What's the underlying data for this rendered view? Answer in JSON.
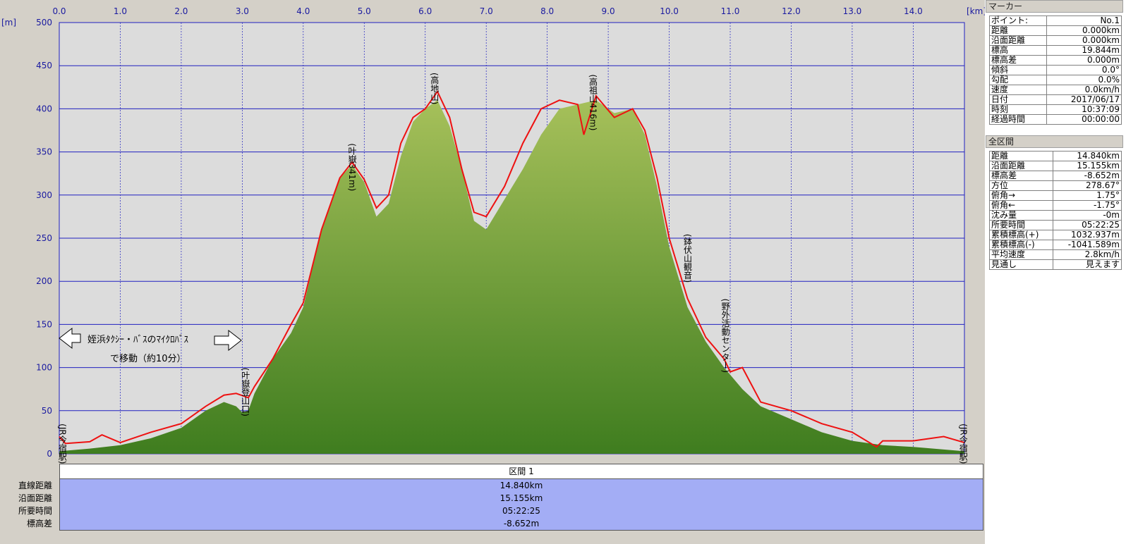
{
  "chart_data": {
    "type": "area",
    "x_unit_label": "[km]",
    "y_unit_label": "[m]",
    "xlim": [
      0,
      14.84
    ],
    "ylim": [
      0,
      500
    ],
    "x_ticks": [
      "0.0",
      "1.0",
      "2.0",
      "3.0",
      "4.0",
      "5.0",
      "6.0",
      "7.0",
      "8.0",
      "9.0",
      "10.0",
      "11.0",
      "12.0",
      "13.0",
      "14.0"
    ],
    "y_ticks": [
      "500",
      "450",
      "400",
      "350",
      "300",
      "250",
      "200",
      "150",
      "100",
      "50",
      "0"
    ],
    "grid": true,
    "series": [
      {
        "color": "#6b9a3a",
        "x": [
          0,
          0.5,
          1.0,
          1.5,
          2.0,
          2.4,
          2.7,
          2.9,
          3.0,
          3.1,
          3.2,
          3.5,
          3.8,
          4.0,
          4.3,
          4.6,
          4.8,
          5.0,
          5.2,
          5.4,
          5.6,
          5.8,
          6.0,
          6.2,
          6.4,
          6.6,
          6.8,
          7.0,
          7.3,
          7.6,
          7.9,
          8.2,
          8.5,
          8.8,
          9.1,
          9.4,
          9.6,
          9.8,
          10.0,
          10.3,
          10.6,
          10.9,
          11.2,
          11.5,
          12.0,
          12.5,
          13.0,
          13.5,
          14.0,
          14.5,
          14.84
        ],
        "y": [
          3,
          6,
          10,
          18,
          30,
          50,
          60,
          55,
          48,
          50,
          70,
          110,
          140,
          170,
          260,
          320,
          335,
          315,
          275,
          290,
          345,
          385,
          400,
          410,
          380,
          330,
          270,
          260,
          295,
          330,
          370,
          400,
          405,
          410,
          395,
          400,
          370,
          310,
          240,
          170,
          130,
          100,
          75,
          55,
          40,
          25,
          15,
          10,
          8,
          5,
          3
        ]
      },
      {
        "color": "#ee1111",
        "x": [
          0,
          0.1,
          0.5,
          0.7,
          1.0,
          1.5,
          2.0,
          2.4,
          2.7,
          2.9,
          3.1,
          3.2,
          3.5,
          3.8,
          4.0,
          4.3,
          4.6,
          4.8,
          5.0,
          5.2,
          5.4,
          5.6,
          5.8,
          6.0,
          6.2,
          6.4,
          6.6,
          6.8,
          7.0,
          7.3,
          7.6,
          7.9,
          8.2,
          8.5,
          8.6,
          8.8,
          9.1,
          9.4,
          9.6,
          9.8,
          10.0,
          10.3,
          10.6,
          10.9,
          11.0,
          11.2,
          11.5,
          12.0,
          12.5,
          13.0,
          13.4,
          13.5,
          14.0,
          14.5,
          14.84
        ],
        "y": [
          20,
          12,
          14,
          22,
          13,
          25,
          35,
          55,
          68,
          70,
          65,
          78,
          110,
          150,
          175,
          260,
          320,
          338,
          318,
          285,
          300,
          360,
          390,
          400,
          420,
          390,
          330,
          280,
          275,
          310,
          360,
          400,
          410,
          405,
          370,
          415,
          390,
          400,
          375,
          320,
          250,
          180,
          135,
          110,
          95,
          100,
          60,
          50,
          35,
          25,
          8,
          15,
          15,
          20,
          13
        ]
      }
    ],
    "annotations": [
      {
        "text": "(JR今宿駅)",
        "x": 0.05,
        "y": 35
      },
      {
        "text": "(叶嶽登山口)",
        "x": 3.05,
        "y": 100
      },
      {
        "text": "(叶嶽341m)",
        "x": 4.8,
        "y": 360
      },
      {
        "text": "(高地山)",
        "x": 6.15,
        "y": 442
      },
      {
        "text": "(高祖山416m)",
        "x": 8.75,
        "y": 440
      },
      {
        "text": "(鉢伏山観音)",
        "x": 10.3,
        "y": 255
      },
      {
        "text": "(野外活動センター)",
        "x": 10.92,
        "y": 180
      },
      {
        "text": "(JR今宿駅)",
        "x": 14.82,
        "y": 35
      }
    ],
    "note_text": [
      "姪浜ﾀｸｼｰ・ﾊﾞｽのﾏｲｸﾛﾊﾞｽ",
      "で移動（約10分）"
    ]
  },
  "stats": {
    "header": "区間 1",
    "rows": [
      {
        "label": "直線距離",
        "value": "14.840km"
      },
      {
        "label": "沿面距離",
        "value": "15.155km"
      },
      {
        "label": "所要時間",
        "value": "05:22:25"
      },
      {
        "label": "標高差",
        "value": "-8.652m"
      }
    ]
  },
  "side_panel": {
    "marker_title": "マーカー",
    "marker_rows": [
      {
        "k": "ポイント:",
        "v": "No.1"
      },
      {
        "k": "距離",
        "v": "0.000km"
      },
      {
        "k": "沿面距離",
        "v": "0.000km"
      },
      {
        "k": "標高",
        "v": "19.844m"
      },
      {
        "k": "標高差",
        "v": "0.000m"
      },
      {
        "k": "傾斜",
        "v": "0.0°"
      },
      {
        "k": "勾配",
        "v": "0.0%"
      },
      {
        "k": "速度",
        "v": "0.0km/h"
      },
      {
        "k": "日付",
        "v": "2017/06/17"
      },
      {
        "k": "時刻",
        "v": "10:37:09"
      },
      {
        "k": "経過時間",
        "v": "00:00:00"
      }
    ],
    "total_title": "全区間",
    "total_rows": [
      {
        "k": "距離",
        "v": "14.840km"
      },
      {
        "k": "沿面距離",
        "v": "15.155km"
      },
      {
        "k": "標高差",
        "v": "-8.652m"
      },
      {
        "k": "方位",
        "v": "278.67°"
      },
      {
        "k": "俯角→",
        "v": "1.75°"
      },
      {
        "k": "俯角←",
        "v": "-1.75°"
      },
      {
        "k": "沈み量",
        "v": "-0m"
      },
      {
        "k": "所要時間",
        "v": "05:22:25"
      },
      {
        "k": "累積標高(+)",
        "v": "1032.937m"
      },
      {
        "k": "累積標高(-)",
        "v": "-1041.589m"
      },
      {
        "k": "平均速度",
        "v": "2.8km/h"
      },
      {
        "k": "見通し",
        "v": "見えます"
      }
    ]
  },
  "colors": {
    "plot_bg": "#dcdcdc",
    "grid": "#2020c0",
    "axis_text": "#1a1aa0",
    "fill_top": "#a6c05a",
    "fill_bottom": "#3f7d1f",
    "track": "#ee1111",
    "stats_bg": "#a3adf5"
  }
}
